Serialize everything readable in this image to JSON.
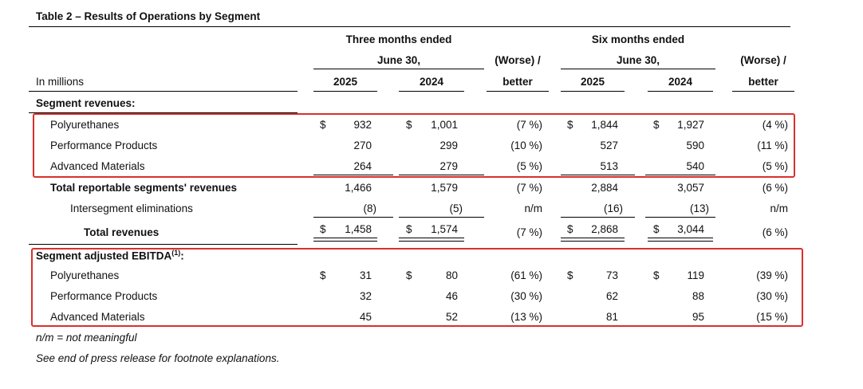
{
  "title": "Table 2 – Results of Operations by Segment",
  "headers": {
    "in_millions": "In millions",
    "three_months_line1": "Three months ended",
    "three_months_line2": "June 30,",
    "six_months_line1": "Six months ended",
    "six_months_line2": "June 30,",
    "worse_line1": "(Worse) /",
    "worse_line2": "better",
    "year_2025": "2025",
    "year_2024": "2024"
  },
  "currency": "$",
  "section_revenues": "Segment revenues:",
  "revenue_rows": [
    {
      "label": "Polyurethanes",
      "v1": "932",
      "v2": "1,001",
      "p1": "(7 %)",
      "v3": "1,844",
      "v4": "1,927",
      "p2": "(4 %)"
    },
    {
      "label": "Performance Products",
      "v1": "270",
      "v2": "299",
      "p1": "(10 %)",
      "v3": "527",
      "v4": "590",
      "p2": "(11 %)"
    },
    {
      "label": "Advanced Materials",
      "v1": "264",
      "v2": "279",
      "p1": "(5 %)",
      "v3": "513",
      "v4": "540",
      "p2": "(5 %)"
    }
  ],
  "total_reportable": {
    "label": "Total reportable segments' revenues",
    "v1": "1,466",
    "v2": "1,579",
    "p1": "(7 %)",
    "v3": "2,884",
    "v4": "3,057",
    "p2": "(6 %)"
  },
  "intersegment": {
    "label": "Intersegment eliminations",
    "v1": "(8)",
    "v2": "(5)",
    "p1": "n/m",
    "v3": "(16)",
    "v4": "(13)",
    "p2": "n/m"
  },
  "total_revenues": {
    "label": "Total revenues",
    "v1": "1,458",
    "v2": "1,574",
    "p1": "(7 %)",
    "v3": "2,868",
    "v4": "3,044",
    "p2": "(6 %)"
  },
  "section_ebitda": "Segment adjusted EBITDA",
  "section_ebitda_sup": "(1)",
  "section_ebitda_colon": ":",
  "ebitda_rows": [
    {
      "label": "Polyurethanes",
      "v1": "31",
      "v2": "80",
      "p1": "(61 %)",
      "v3": "73",
      "v4": "119",
      "p2": "(39 %)"
    },
    {
      "label": "Performance Products",
      "v1": "32",
      "v2": "46",
      "p1": "(30 %)",
      "v3": "62",
      "v4": "88",
      "p2": "(30 %)"
    },
    {
      "label": "Advanced Materials",
      "v1": "45",
      "v2": "52",
      "p1": "(13 %)",
      "v3": "81",
      "v4": "95",
      "p2": "(15 %)"
    }
  ],
  "footnote_nm": "n/m = not meaningful",
  "footnote_see": "See end of press release for footnote explanations.",
  "colors": {
    "highlight_border": "#d9302c"
  }
}
